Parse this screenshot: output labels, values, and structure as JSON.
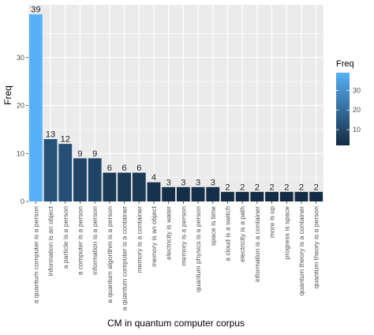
{
  "chart_data": {
    "type": "bar",
    "xlabel": "CM in quantum computer corpus",
    "ylabel": "Freq",
    "ylim": [
      0,
      41
    ],
    "yticks": [
      0,
      10,
      20,
      30
    ],
    "categories": [
      "a quantum computer is a person",
      "information is an object",
      "a particle is a person",
      "a computer is a person",
      "information is a person",
      "a quantum algorithm is a person",
      "a quantum computer is a container",
      "memory is a container",
      "memory is an object",
      "electricity is water",
      "memory is a person",
      "quantum physics is a person",
      "space is time",
      "a cloud is a switch",
      "electricity is a path",
      "information is a container",
      "more is up",
      "progress is space",
      "quantum theory is a container",
      "quantum theory is a person"
    ],
    "values": [
      39,
      13,
      12,
      9,
      9,
      6,
      6,
      6,
      4,
      3,
      3,
      3,
      3,
      2,
      2,
      2,
      2,
      2,
      2,
      2
    ],
    "grid": true,
    "legend": {
      "title": "Freq",
      "position": "right",
      "ticks": [
        10,
        20,
        30
      ],
      "range": [
        2,
        39
      ],
      "color_low": "#132b43",
      "color_high": "#56b1f7"
    },
    "panel_background": "#ebebeb",
    "grid_color": "#ffffff"
  }
}
